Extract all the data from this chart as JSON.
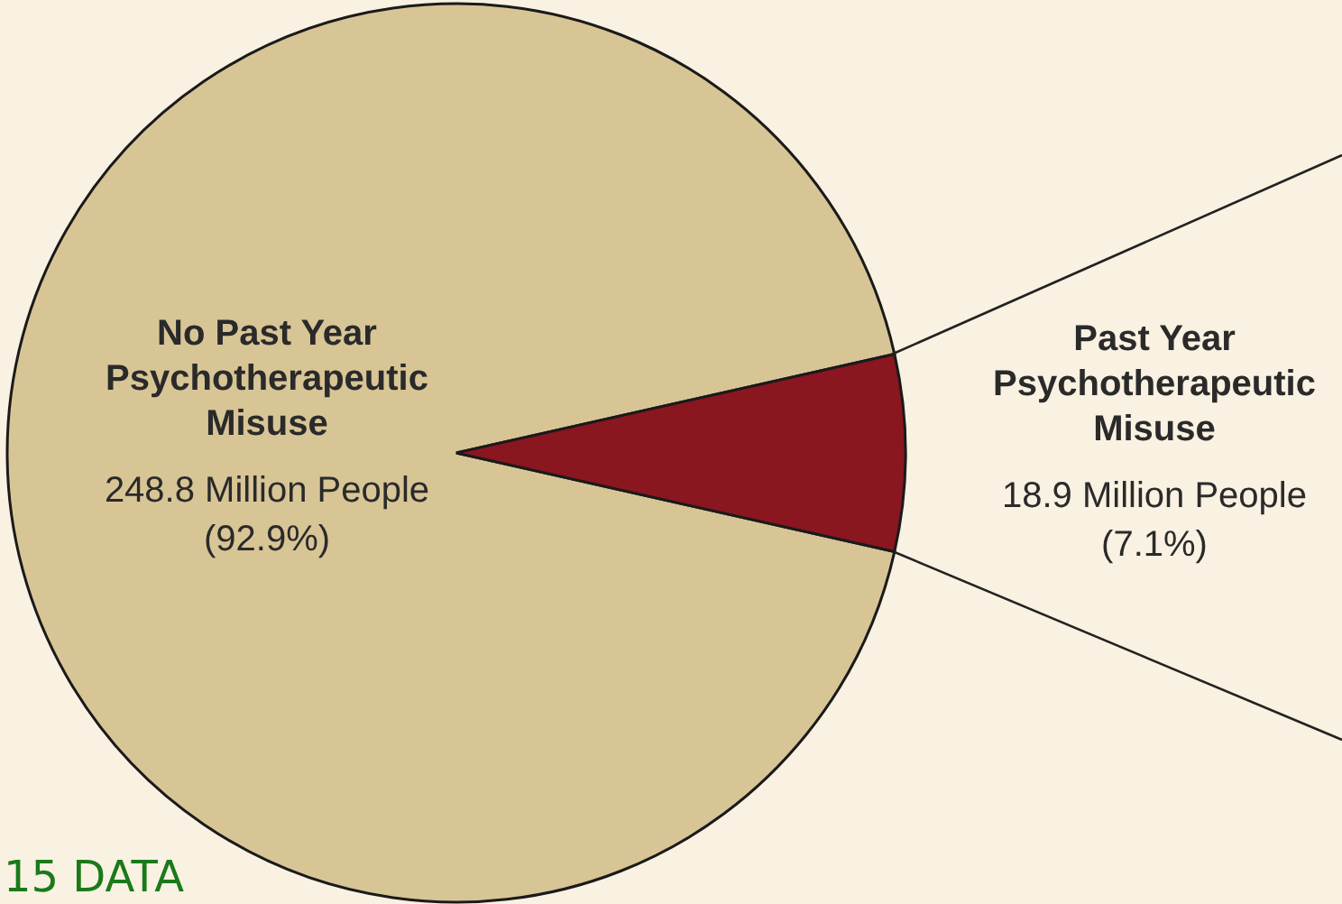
{
  "chart_data": {
    "type": "pie",
    "categories": [
      "No Past Year\nPsychotherapeutic\nMisuse",
      "Past Year\nPsychotherapeutic\nMisuse"
    ],
    "values": [
      248.8,
      18.9
    ],
    "value_labels": [
      "248.8 Million People\n(92.9%)",
      "18.9 Million People\n(7.1%)"
    ],
    "colors": [
      "#d8c596",
      "#8a1620"
    ],
    "annotations": [
      "15 DATA"
    ]
  }
}
